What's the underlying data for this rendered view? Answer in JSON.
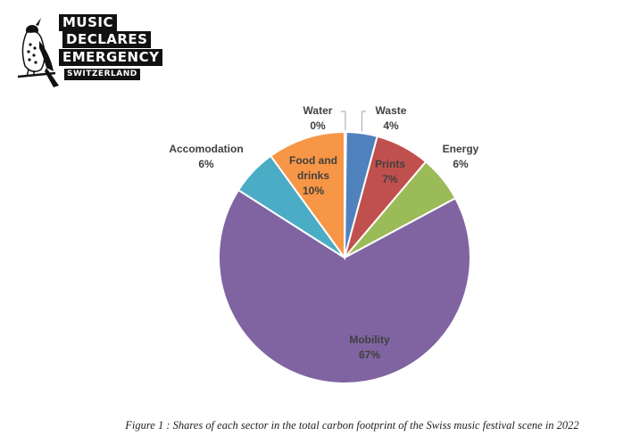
{
  "logo": {
    "line1": "MUSIC",
    "line2": "DECLARES",
    "line3": "EMERGENCY",
    "line4": "SWITZERLAND"
  },
  "chart_data": {
    "type": "pie",
    "title": "",
    "slices": [
      {
        "name": "Water",
        "label_lines": [
          "Water"
        ],
        "value_text": "0%",
        "value": 0.2,
        "color": "#b0b0b0"
      },
      {
        "name": "Waste",
        "label_lines": [
          "Waste"
        ],
        "value_text": "4%",
        "value": 4,
        "color": "#4f81bd"
      },
      {
        "name": "Prints",
        "label_lines": [
          "Prints"
        ],
        "value_text": "7%",
        "value": 7,
        "color": "#c0504d"
      },
      {
        "name": "Energy",
        "label_lines": [
          "Energy"
        ],
        "value_text": "6%",
        "value": 6,
        "color": "#9bbb59"
      },
      {
        "name": "Mobility",
        "label_lines": [
          "Mobility"
        ],
        "value_text": "67%",
        "value": 67,
        "color": "#8064a2"
      },
      {
        "name": "Accomodation",
        "label_lines": [
          "Accomodation"
        ],
        "value_text": "6%",
        "value": 6,
        "color": "#4bacc6"
      },
      {
        "name": "Food and drinks",
        "label_lines": [
          "Food and",
          "drinks"
        ],
        "value_text": "10%",
        "value": 10,
        "color": "#f79646"
      }
    ]
  },
  "caption": "Figure 1 : Shares of each sector in the total carbon footprint of the Swiss music festival scene in 2022"
}
